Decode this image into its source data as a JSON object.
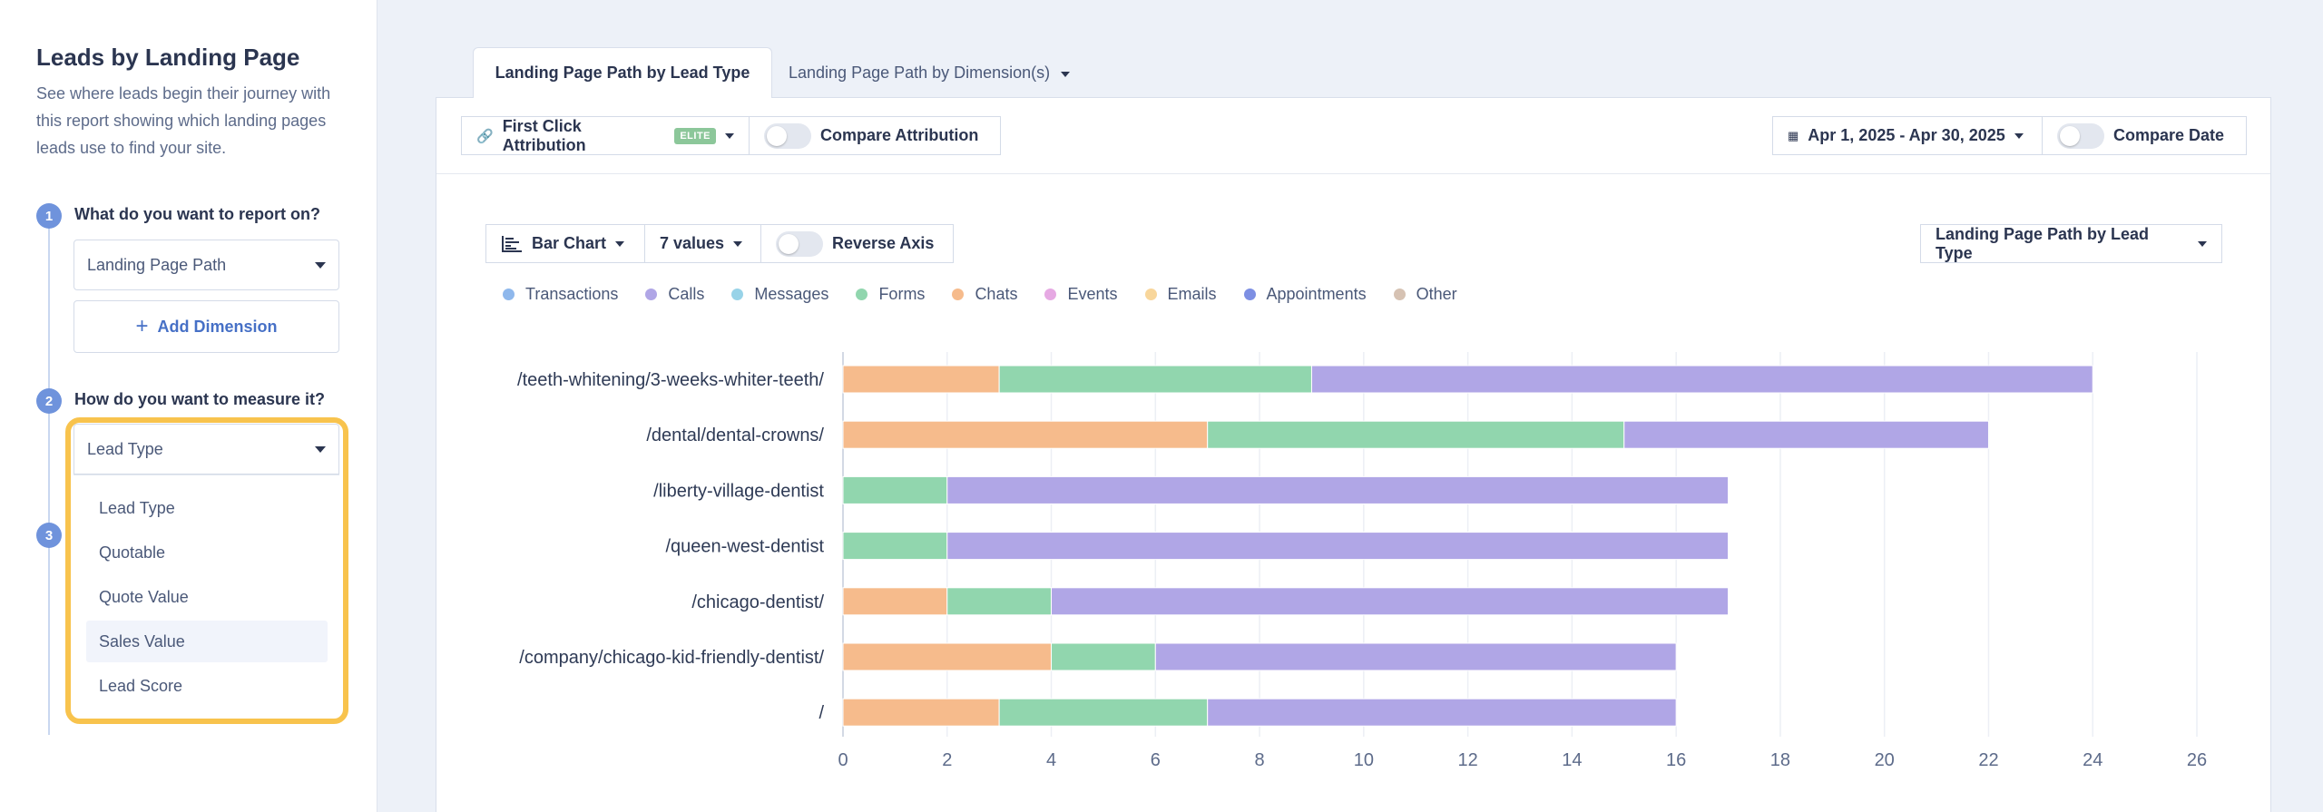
{
  "sidebar": {
    "title": "Leads by Landing Page",
    "description": "See where leads begin their journey with this report showing which landing pages leads use to find your site.",
    "step1": {
      "num": "1",
      "question": "What do you want to report on?",
      "value": "Landing Page Path"
    },
    "add_dimension": "Add Dimension",
    "step2": {
      "num": "2",
      "question": "How do you want to measure it?",
      "value": "Lead Type"
    },
    "step3": {
      "num": "3"
    },
    "dropdown_options": [
      "Lead Type",
      "Quotable",
      "Quote Value",
      "Sales Value",
      "Lead Score"
    ],
    "dropdown_hovered": "Sales Value",
    "highlight_color": "#f8c34d"
  },
  "tabs": [
    {
      "label": "Landing Page Path by Lead Type",
      "active": true
    },
    {
      "label": "Landing Page Path by Dimension(s)",
      "active": false
    }
  ],
  "toolbar": {
    "attribution": "First Click Attribution",
    "attribution_badge": "ELITE",
    "compare_attribution": "Compare Attribution",
    "date_range": "Apr 1, 2025 - Apr 30, 2025",
    "compare_date": "Compare Date"
  },
  "chart_controls": {
    "chart_type": "Bar Chart",
    "values_count": "7 values",
    "reverse_axis": "Reverse Axis",
    "view_select": "Landing Page Path by Lead Type"
  },
  "legend": [
    {
      "name": "Transactions",
      "color": "#8fb8ec"
    },
    {
      "name": "Calls",
      "color": "#b0a6e6"
    },
    {
      "name": "Messages",
      "color": "#98d3e8"
    },
    {
      "name": "Forms",
      "color": "#91d6ae"
    },
    {
      "name": "Chats",
      "color": "#f6bb8c"
    },
    {
      "name": "Events",
      "color": "#e6a9e3"
    },
    {
      "name": "Emails",
      "color": "#f8d69b"
    },
    {
      "name": "Appointments",
      "color": "#7d8fe3"
    },
    {
      "name": "Other",
      "color": "#d6c2b3"
    }
  ],
  "chart_data": {
    "type": "bar",
    "orientation": "horizontal",
    "stacked": true,
    "categories": [
      "/teeth-whitening/3-weeks-whiter-teeth/",
      "/dental/dental-crowns/",
      "/liberty-village-dentist",
      "/queen-west-dentist",
      "/chicago-dentist/",
      "/company/chicago-kid-friendly-dentist/",
      "/"
    ],
    "series": [
      {
        "name": "Chats",
        "color": "#f6bb8c",
        "values": [
          3,
          7,
          0,
          0,
          2,
          4,
          3
        ]
      },
      {
        "name": "Forms",
        "color": "#91d6ae",
        "values": [
          6,
          8,
          2,
          2,
          2,
          2,
          4
        ]
      },
      {
        "name": "Calls",
        "color": "#b0a6e6",
        "values": [
          15,
          7,
          15,
          15,
          13,
          10,
          9
        ]
      }
    ],
    "xlim": [
      0,
      26
    ],
    "xticks": [
      "0",
      "2",
      "4",
      "6",
      "8",
      "10",
      "12",
      "14",
      "16",
      "18",
      "20",
      "22",
      "24",
      "26"
    ],
    "grid": true
  }
}
